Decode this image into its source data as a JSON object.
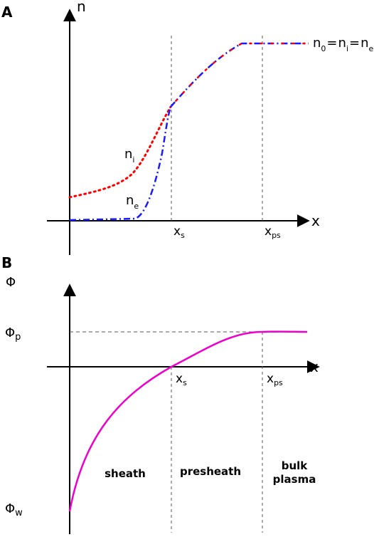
{
  "panel_a": {
    "label": "A",
    "y_axis_label": "n",
    "x_axis_label": "x",
    "x_ticks": [
      {
        "main": "x",
        "sub": "s"
      },
      {
        "main": "x",
        "sub": "ps"
      }
    ],
    "series": [
      {
        "main": "n",
        "sub": "i",
        "color": "#ff0000",
        "style": "dotted"
      },
      {
        "main": "n",
        "sub": "e",
        "color": "#1a1aff",
        "style": "dash-dot"
      }
    ],
    "equation": [
      {
        "main": "n",
        "sub": "0"
      },
      {
        "op": "="
      },
      {
        "main": "n",
        "sub": "i"
      },
      {
        "op": "="
      },
      {
        "main": "n",
        "sub": "e"
      }
    ],
    "curve_color_combined": "#8a1ad0"
  },
  "panel_b": {
    "label": "B",
    "y_axis_label": "Φ",
    "x_axis_label": "x",
    "x_ticks": [
      {
        "main": "x",
        "sub": "s"
      },
      {
        "main": "x",
        "sub": "ps"
      }
    ],
    "y_ticks": [
      {
        "main": "Φ",
        "sub": "p"
      },
      {
        "main": "Φ",
        "sub": "w"
      }
    ],
    "curve_color": "#ee00cc",
    "regions": [
      {
        "lines": [
          "sheath"
        ]
      },
      {
        "lines": [
          "presheath"
        ]
      },
      {
        "lines": [
          "bulk",
          "plasma"
        ]
      }
    ]
  }
}
